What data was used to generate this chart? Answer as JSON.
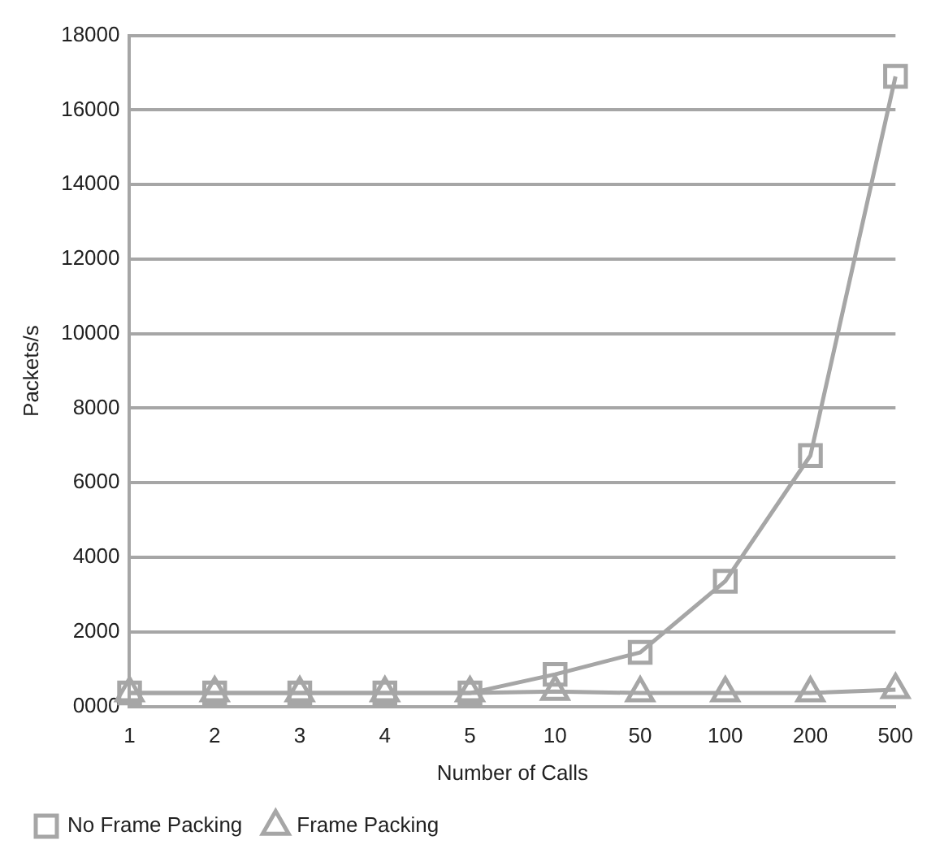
{
  "chart_data": {
    "type": "line",
    "xlabel": "Number of Calls",
    "ylabel": "Packets/s",
    "categories": [
      "1",
      "2",
      "3",
      "4",
      "5",
      "10",
      "50",
      "100",
      "200",
      "500"
    ],
    "series": [
      {
        "name": "No Frame Packing",
        "color": "#a6a6a6",
        "marker": "square",
        "values": [
          360,
          360,
          360,
          360,
          360,
          860,
          1450,
          3360,
          6730,
          16900
        ]
      },
      {
        "name": "Frame Packing",
        "color": "#a6a6a6",
        "marker": "triangle",
        "values": [
          360,
          360,
          360,
          360,
          360,
          400,
          360,
          360,
          360,
          450
        ]
      }
    ],
    "ylim": [
      0,
      18000
    ],
    "yticks": [
      {
        "value": 0,
        "label": "0000"
      },
      2000,
      4000,
      6000,
      8000,
      10000,
      12000,
      14000,
      16000,
      18000
    ],
    "grid": "y",
    "legend": "bottom left"
  }
}
